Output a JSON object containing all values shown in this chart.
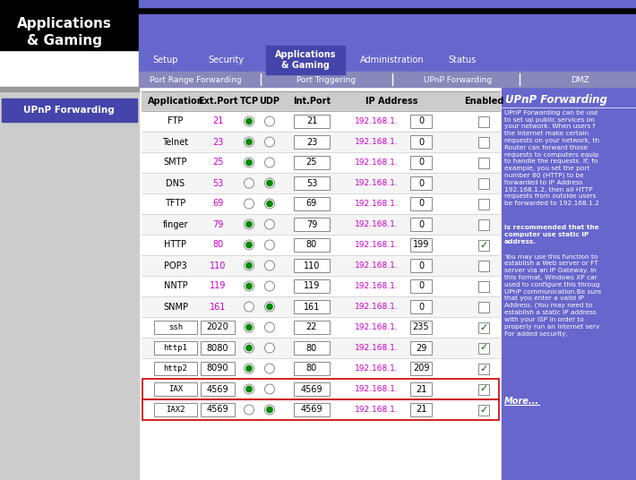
{
  "nav_items": [
    "Setup",
    "Security",
    "Applications\n& Gaming",
    "Administration",
    "Status"
  ],
  "sub_nav": [
    "Port Range Forwarding",
    "Port Triggering",
    "UPnP Forwarding",
    "DMZ"
  ],
  "active_nav": "Applications\n& Gaming",
  "active_sub": "UPnP Forwarding",
  "left_menu": "UPnP Forwarding",
  "table_headers": [
    "Application",
    "Ext.Port",
    "TCP",
    "UDP",
    "Int.Port",
    "IP Address",
    "Enabled"
  ],
  "rows": [
    {
      "app": "FTP",
      "ext": "21",
      "tcp": true,
      "udp": false,
      "int": "21",
      "host": "0",
      "enabled": false,
      "editable": false,
      "highlighted": false
    },
    {
      "app": "Telnet",
      "ext": "23",
      "tcp": true,
      "udp": false,
      "int": "23",
      "host": "0",
      "enabled": false,
      "editable": false,
      "highlighted": false
    },
    {
      "app": "SMTP",
      "ext": "25",
      "tcp": true,
      "udp": false,
      "int": "25",
      "host": "0",
      "enabled": false,
      "editable": false,
      "highlighted": false
    },
    {
      "app": "DNS",
      "ext": "53",
      "tcp": false,
      "udp": true,
      "int": "53",
      "host": "0",
      "enabled": false,
      "editable": false,
      "highlighted": false
    },
    {
      "app": "TFTP",
      "ext": "69",
      "tcp": false,
      "udp": true,
      "int": "69",
      "host": "0",
      "enabled": false,
      "editable": false,
      "highlighted": false
    },
    {
      "app": "finger",
      "ext": "79",
      "tcp": true,
      "udp": false,
      "int": "79",
      "host": "0",
      "enabled": false,
      "editable": false,
      "highlighted": false
    },
    {
      "app": "HTTP",
      "ext": "80",
      "tcp": true,
      "udp": false,
      "int": "80",
      "host": "199",
      "enabled": true,
      "editable": false,
      "highlighted": false
    },
    {
      "app": "POP3",
      "ext": "110",
      "tcp": true,
      "udp": false,
      "int": "110",
      "host": "0",
      "enabled": false,
      "editable": false,
      "highlighted": false
    },
    {
      "app": "NNTP",
      "ext": "119",
      "tcp": true,
      "udp": false,
      "int": "119",
      "host": "0",
      "enabled": false,
      "editable": false,
      "highlighted": false
    },
    {
      "app": "SNMP",
      "ext": "161",
      "tcp": false,
      "udp": true,
      "int": "161",
      "host": "0",
      "enabled": false,
      "editable": false,
      "highlighted": false
    },
    {
      "app": "ssh",
      "ext": "2020",
      "tcp": true,
      "udp": false,
      "int": "22",
      "host": "235",
      "enabled": true,
      "editable": true,
      "highlighted": false
    },
    {
      "app": "http1",
      "ext": "8080",
      "tcp": true,
      "udp": false,
      "int": "80",
      "host": "29",
      "enabled": true,
      "editable": true,
      "highlighted": false
    },
    {
      "app": "http2",
      "ext": "8090",
      "tcp": true,
      "udp": false,
      "int": "80",
      "host": "209",
      "enabled": true,
      "editable": true,
      "highlighted": false
    },
    {
      "app": "IAX",
      "ext": "4569",
      "tcp": true,
      "udp": false,
      "int": "4569",
      "host": "21",
      "enabled": true,
      "editable": true,
      "highlighted": true
    },
    {
      "app": "IAX2",
      "ext": "4569",
      "tcp": false,
      "udp": true,
      "int": "4569",
      "host": "21",
      "enabled": true,
      "editable": true,
      "highlighted": true
    }
  ],
  "colors": {
    "black": "#000000",
    "white": "#ffffff",
    "nav_purple": "#6666cc",
    "nav_active": "#4444aa",
    "sub_nav_bg": "#8888bb",
    "header_bg": "#000000",
    "table_header_bg": "#cccccc",
    "row_bg_white": "#ffffff",
    "left_panel_bg": "#cccccc",
    "right_panel_bg": "#6666cc",
    "highlight_border": "#cc0000",
    "check_green": "#006600",
    "radio_green": "#008800",
    "purple_text": "#cc00cc",
    "gray_border": "#aaaaaa"
  }
}
